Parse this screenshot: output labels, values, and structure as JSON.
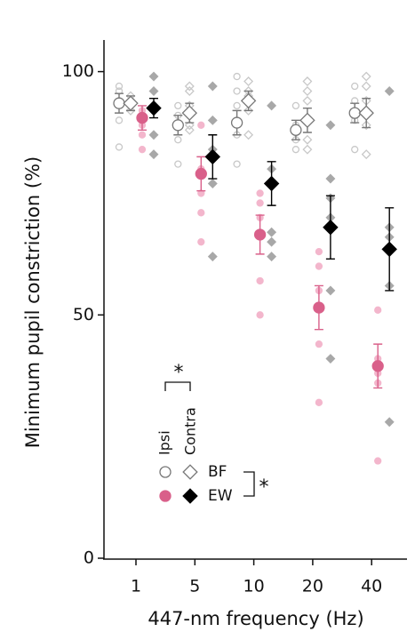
{
  "chart_data": {
    "type": "dot-errorbar",
    "y_label": "Minimum pupil constriction (%)",
    "x_label": "447-nm frequency (Hz)",
    "categories": [
      "1",
      "5",
      "10",
      "20",
      "40"
    ],
    "ylim": [
      0,
      106.5
    ],
    "yticks": [
      0,
      50,
      100
    ],
    "legend": {
      "columns": [
        "Ipsi",
        "Contra"
      ],
      "rows": [
        "BF",
        "EW"
      ]
    },
    "annotations": [
      "*",
      "*"
    ],
    "series": [
      {
        "shape": "circle",
        "filled": false,
        "color": "#777777",
        "point_color": "#c8c8c8",
        "values": [
          93.5,
          89,
          89.5,
          88,
          91.5
        ],
        "errors": [
          2,
          2,
          2.5,
          2,
          2
        ],
        "points": [
          [
            97,
            96,
            94,
            90,
            84.5
          ],
          [
            93,
            91,
            89,
            86,
            81
          ],
          [
            99,
            96,
            93,
            87,
            81
          ],
          [
            93,
            89,
            86,
            84
          ],
          [
            97,
            94,
            90,
            84
          ]
        ]
      },
      {
        "shape": "diamond",
        "filled": false,
        "color": "#777777",
        "point_color": "#c8c8c8",
        "values": [
          93.5,
          91.5,
          94,
          90,
          91.5
        ],
        "errors": [
          1.5,
          2,
          2,
          2.5,
          3
        ],
        "points": [
          [
            95,
            94,
            92
          ],
          [
            97,
            96,
            93,
            89,
            88
          ],
          [
            98,
            96,
            95,
            92,
            87
          ],
          [
            98,
            96,
            94,
            86,
            84
          ],
          [
            99,
            97,
            94,
            89,
            83
          ]
        ]
      },
      {
        "shape": "circle",
        "filled": true,
        "color": "#d9608a",
        "point_color": "#f3b6cc",
        "values": [
          90.5,
          79,
          66.5,
          51.5,
          39.5
        ],
        "errors": [
          2.5,
          3.5,
          4,
          4.5,
          4.5
        ],
        "points": [
          [
            92,
            89,
            87,
            84
          ],
          [
            89,
            80,
            75,
            71,
            65
          ],
          [
            75,
            73,
            70,
            57,
            50
          ],
          [
            63,
            60,
            55,
            44,
            32
          ],
          [
            51,
            41,
            38,
            36,
            20
          ]
        ]
      },
      {
        "shape": "diamond",
        "filled": true,
        "color": "#000000",
        "point_color": "#a8a8a8",
        "values": [
          92.5,
          82.5,
          77,
          68,
          63.5
        ],
        "errors": [
          2,
          4.5,
          4.5,
          6.5,
          8.5
        ],
        "points": [
          [
            99,
            96,
            93,
            87,
            83
          ],
          [
            97,
            90,
            84,
            77,
            62
          ],
          [
            93,
            80,
            67,
            65,
            62
          ],
          [
            89,
            78,
            74,
            70,
            55,
            41
          ],
          [
            96,
            68,
            66,
            56,
            28
          ]
        ]
      }
    ]
  }
}
